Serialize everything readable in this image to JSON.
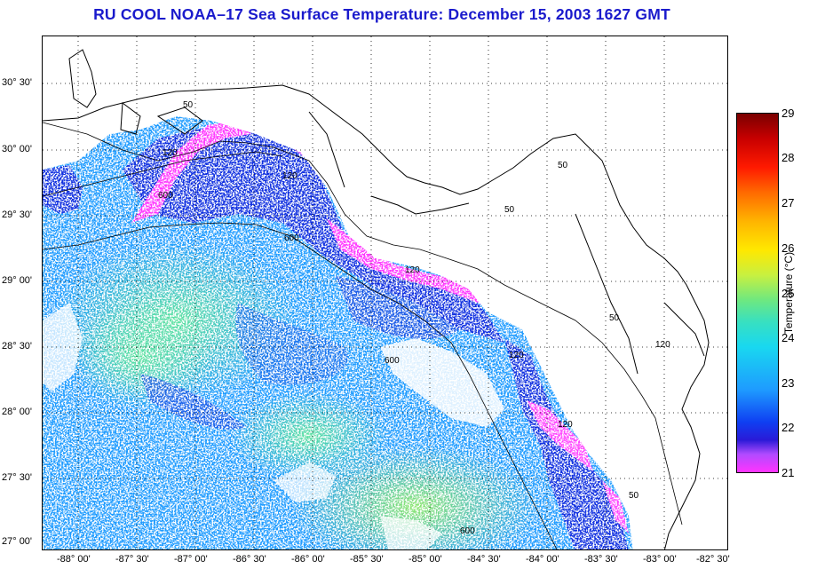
{
  "title": "RU COOL  NOAA–17  Sea Surface Temperature:  December 15, 2003 1627 GMT",
  "lat_labels": [
    "30° 30'",
    "30° 00'",
    "29° 30'",
    "29° 00'",
    "28° 30'",
    "28° 00'",
    "27° 30'",
    "27° 00'"
  ],
  "lon_labels": [
    "-88° 00'",
    "-87° 30'",
    "-87° 00'",
    "-86° 30'",
    "-86° 00'",
    "-85° 30'",
    "-85° 00'",
    "-84° 30'",
    "-84° 00'",
    "-83° 30'",
    "-83° 00'",
    "-82° 30'"
  ],
  "colorbar": {
    "ticks": [
      "29",
      "28",
      "27",
      "26",
      "25",
      "24",
      "23",
      "22",
      "21"
    ],
    "label": "Temperature (°C)",
    "min": 21,
    "max": 29
  },
  "isobath_labels": [
    "50",
    "50",
    "50",
    "50",
    "120",
    "120",
    "120",
    "120",
    "120",
    "600",
    "600",
    "600",
    "600",
    "50",
    "120"
  ],
  "colors": {
    "title": "#1a1acc",
    "land": "#ffffff",
    "warm_water": "#38e0c0",
    "mid_water": "#1e9bff",
    "cool_water": "#0f2fe0",
    "coldest_water": "#ff33ff",
    "coastline": "#000000",
    "grid": "#000000"
  }
}
